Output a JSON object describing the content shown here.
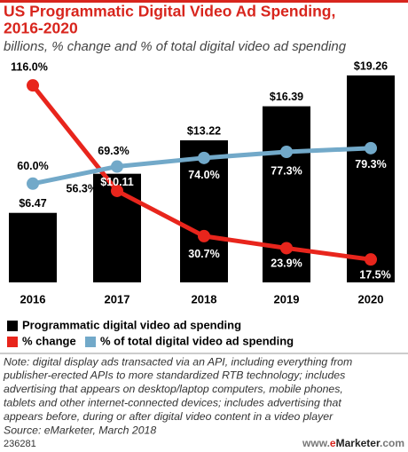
{
  "chart_data": {
    "type": "bar-line",
    "title": [
      "US Programmatic Digital Video Ad Spending,",
      "2016-2020"
    ],
    "subtitle": "billions, % change and % of total digital video ad spending",
    "categories": [
      "2016",
      "2017",
      "2018",
      "2019",
      "2020"
    ],
    "series": [
      {
        "name": "Programmatic digital video ad spending",
        "type": "bar",
        "color": "#000000",
        "values": [
          6.47,
          10.11,
          13.22,
          16.39,
          19.26
        ],
        "value_labels": [
          "$6.47",
          "$10.11",
          "$13.22",
          "$16.39",
          "$19.26"
        ]
      },
      {
        "name": "% change",
        "type": "line",
        "color": "#e8251c",
        "values": [
          116.0,
          56.3,
          30.7,
          23.9,
          17.5
        ],
        "value_labels": [
          "116.0%",
          "56.3%",
          "30.7%",
          "23.9%",
          "17.5%"
        ]
      },
      {
        "name": "% of total digital video ad spending",
        "type": "line",
        "color": "#72a9c9",
        "values": [
          60.0,
          69.3,
          74.0,
          77.3,
          79.3
        ],
        "value_labels": [
          "60.0%",
          "69.3%",
          "74.0%",
          "77.3%",
          "79.3%"
        ]
      }
    ],
    "note": [
      "Note: digital display ads transacted via an API, including everything from",
      "publisher-erected APIs to more standardized RTB technology; includes",
      "advertising that appears on desktop/laptop computers, mobile phones,",
      "tablets and other internet-connected devices; includes advertising that",
      "appears before, during or after digital video content in a video player"
    ],
    "source": "Source: eMarketer, March 2018",
    "id": "236281",
    "logo": [
      "www.",
      "e",
      "Marketer",
      ".com"
    ]
  }
}
